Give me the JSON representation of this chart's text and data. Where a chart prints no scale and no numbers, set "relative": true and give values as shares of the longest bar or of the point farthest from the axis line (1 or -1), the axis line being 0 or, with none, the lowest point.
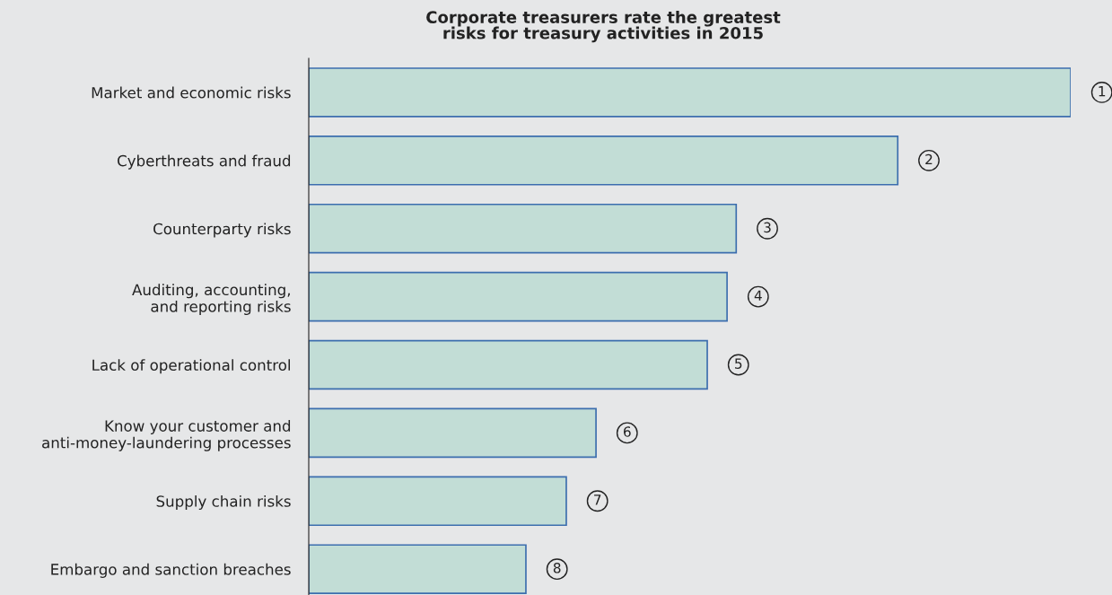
{
  "chart_data": {
    "type": "bar",
    "orientation": "horizontal",
    "relative": true,
    "title": "Corporate treasurers rate the greatest\nrisks for treasury activities in 2015",
    "categories": [
      "Market and economic risks",
      "Cyberthreats and fraud",
      "Counterparty risks",
      "Auditing, accounting,\nand reporting risks",
      "Lack of operational control",
      "Know your customer and\nanti-money-laundering processes",
      "Supply chain risks",
      "Embargo and sanction breaches"
    ],
    "values": [
      1,
      0.773,
      0.561,
      0.549,
      0.523,
      0.377,
      0.338,
      0.285
    ],
    "annotations": [
      {
        "text": "1",
        "x": 1,
        "y": "Market and economic risks"
      },
      {
        "text": "2",
        "x": 0.773,
        "y": "Cyberthreats and fraud"
      },
      {
        "text": "3",
        "x": 0.561,
        "y": "Counterparty risks"
      },
      {
        "text": "4",
        "x": 0.549,
        "y": "Auditing, accounting,\nand reporting risks"
      },
      {
        "text": "5",
        "x": 0.523,
        "y": "Lack of operational control"
      },
      {
        "text": "6",
        "x": 0.377,
        "y": "Know your customer and\nanti-money-laundering processes"
      },
      {
        "text": "7",
        "x": 0.338,
        "y": "Supply chain risks"
      },
      {
        "text": "8",
        "x": 0.285,
        "y": "Embargo and sanction breaches"
      }
    ],
    "color": "#c2ddd6",
    "grid": false,
    "legend": false
  }
}
